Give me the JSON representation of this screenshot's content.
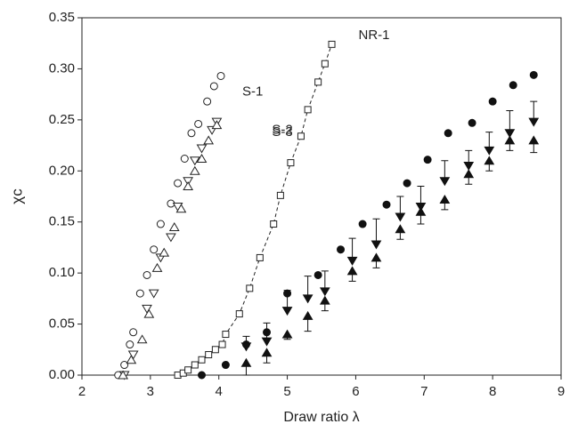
{
  "chart_data": {
    "type": "scatter",
    "xlabel": "Draw ratio λ",
    "ylabel": "χc",
    "xlim": [
      2,
      9
    ],
    "xticks": [
      2,
      3,
      4,
      5,
      6,
      7,
      8,
      9
    ],
    "ylim": [
      0,
      0.35
    ],
    "yticks": [
      {
        "value": 0,
        "label": "0.00"
      },
      0.05,
      {
        "value": 0.1,
        "label": "0.10"
      },
      0.15,
      {
        "value": 0.2,
        "label": "0.20"
      },
      0.25,
      {
        "value": 0.3,
        "label": "0.30"
      },
      0.35
    ],
    "grid": false,
    "series": [
      {
        "name": "S-1",
        "color": "#222222",
        "marker": "circle",
        "filled": false,
        "x": [
          2.53,
          2.62,
          2.7,
          2.75,
          2.85,
          2.95,
          3.05,
          3.15,
          3.3,
          3.4,
          3.5,
          3.6,
          3.7,
          3.83,
          3.93,
          4.03
        ],
        "values": [
          0,
          0.01,
          0.03,
          0.042,
          0.08,
          0.098,
          0.123,
          0.148,
          0.168,
          0.188,
          0.212,
          0.237,
          0.246,
          0.268,
          0.283,
          0.293
        ]
      },
      {
        "name": "S-3",
        "color": "#222222",
        "marker": "triangle-down",
        "filled": false,
        "x": [
          2.62,
          2.75,
          2.95,
          3.05,
          3.15,
          3.3,
          3.4,
          3.55,
          3.65,
          3.75,
          3.9,
          3.97
        ],
        "values": [
          0,
          0.02,
          0.065,
          0.08,
          0.115,
          0.135,
          0.165,
          0.19,
          0.21,
          0.222,
          0.24,
          0.248
        ]
      },
      {
        "name": "S-2",
        "color": "#222222",
        "marker": "triangle-up",
        "filled": false,
        "x": [
          2.6,
          2.72,
          2.88,
          2.98,
          3.1,
          3.2,
          3.35,
          3.45,
          3.55,
          3.65,
          3.75,
          3.85,
          3.97
        ],
        "values": [
          0,
          0.015,
          0.035,
          0.06,
          0.105,
          0.12,
          0.145,
          0.163,
          0.185,
          0.2,
          0.212,
          0.23,
          0.245
        ]
      },
      {
        "name": "NR-1",
        "color": "#222222",
        "marker": "square",
        "filled": false,
        "line": "dashed",
        "x": [
          3.4,
          3.48,
          3.55,
          3.65,
          3.75,
          3.85,
          3.95,
          4.05,
          4.1,
          4.3,
          4.45,
          4.6,
          4.8,
          4.9,
          5.05,
          5.2,
          5.3,
          5.45,
          5.55,
          5.65
        ],
        "values": [
          0,
          0.002,
          0.005,
          0.01,
          0.015,
          0.02,
          0.025,
          0.03,
          0.04,
          0.06,
          0.085,
          0.115,
          0.148,
          0.176,
          0.208,
          0.234,
          0.26,
          0.287,
          0.305,
          0.324
        ]
      },
      {
        "color": "#111111",
        "marker": "circle",
        "filled": true,
        "x": [
          3.75,
          4.1,
          4.4,
          4.7,
          5.0,
          5.45,
          5.78,
          6.1,
          6.45,
          6.75,
          7.05,
          7.35,
          7.7,
          8.0,
          8.3,
          8.6
        ],
        "values": [
          0,
          0.01,
          0.03,
          0.042,
          0.08,
          0.098,
          0.123,
          0.148,
          0.167,
          0.188,
          0.211,
          0.237,
          0.247,
          0.268,
          0.284,
          0.294
        ]
      },
      {
        "color": "#111111",
        "marker": "triangle-down",
        "filled": true,
        "error_direction": "up",
        "x": [
          4.4,
          4.7,
          5.0,
          5.3,
          5.55,
          5.95,
          6.3,
          6.65,
          6.95,
          7.3,
          7.65,
          7.95,
          8.25,
          8.6
        ],
        "values": [
          0.028,
          0.033,
          0.063,
          0.075,
          0.082,
          0.112,
          0.128,
          0.155,
          0.165,
          0.19,
          0.205,
          0.22,
          0.237,
          0.248
        ],
        "errors": [
          0.01,
          0.018,
          0.02,
          0.022,
          0.02,
          0.022,
          0.025,
          0.02,
          0.02,
          0.02,
          0.015,
          0.018,
          0.022,
          0.02
        ]
      },
      {
        "color": "#111111",
        "marker": "triangle-up",
        "filled": true,
        "error_direction": "down",
        "x": [
          4.4,
          4.7,
          5.0,
          5.3,
          5.55,
          5.95,
          6.3,
          6.65,
          6.95,
          7.3,
          7.65,
          7.95,
          8.25,
          8.6
        ],
        "values": [
          0.012,
          0.022,
          0.04,
          0.058,
          0.073,
          0.102,
          0.115,
          0.143,
          0.16,
          0.172,
          0.197,
          0.21,
          0.23,
          0.23
        ],
        "errors": [
          0.012,
          0.01,
          0.005,
          0.015,
          0.01,
          0.01,
          0.01,
          0.01,
          0.012,
          0.01,
          0.01,
          0.01,
          0.01,
          0.012
        ]
      }
    ]
  }
}
